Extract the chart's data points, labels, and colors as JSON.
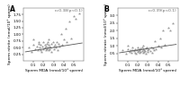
{
  "panel_A": {
    "label": "A",
    "annotation": "r=0.38(p<0.1)",
    "xlabel": "Sperm MDA (nmol/10⁶ sperm)",
    "ylabel": "Sperm nitrite (nmol/10⁶ sperm)",
    "xlim": [
      0,
      0.6
    ],
    "ylim": [
      0.0,
      2.0
    ],
    "xticks": [
      0.1,
      0.2,
      0.3,
      0.4,
      0.5
    ],
    "yticks": [
      0.25,
      0.5,
      0.75,
      1.0,
      1.25,
      1.5,
      1.75
    ],
    "trend_x": [
      0.02,
      0.58
    ],
    "trend_y": [
      0.35,
      0.68
    ],
    "scatter_x": [
      0.05,
      0.08,
      0.1,
      0.1,
      0.12,
      0.13,
      0.14,
      0.15,
      0.15,
      0.16,
      0.17,
      0.17,
      0.18,
      0.19,
      0.2,
      0.2,
      0.21,
      0.21,
      0.22,
      0.22,
      0.23,
      0.23,
      0.24,
      0.24,
      0.25,
      0.25,
      0.25,
      0.26,
      0.26,
      0.27,
      0.28,
      0.28,
      0.29,
      0.3,
      0.3,
      0.31,
      0.32,
      0.33,
      0.34,
      0.35,
      0.36,
      0.37,
      0.38,
      0.4,
      0.42,
      0.43,
      0.45,
      0.47,
      0.5,
      0.52,
      0.55
    ],
    "scatter_y": [
      0.5,
      0.35,
      0.6,
      0.8,
      0.45,
      0.55,
      0.4,
      0.65,
      0.7,
      0.5,
      0.4,
      0.6,
      0.35,
      0.55,
      0.7,
      0.45,
      0.5,
      0.6,
      0.4,
      0.55,
      0.65,
      0.45,
      0.7,
      0.5,
      0.4,
      0.6,
      0.8,
      0.45,
      0.55,
      0.5,
      0.65,
      0.35,
      0.7,
      0.55,
      0.45,
      0.6,
      0.5,
      0.7,
      0.4,
      0.65,
      0.55,
      1.0,
      0.6,
      0.8,
      1.2,
      0.7,
      1.5,
      0.85,
      1.7,
      1.6,
      1.8
    ]
  },
  "panel_B": {
    "label": "B",
    "annotation": "r=0.39(p<0.1)",
    "xlabel": "Sperm MDA (nmol/10⁶ sperm)",
    "ylabel": "Sperm nitrate (nmol/10⁶ sperm)",
    "xlim": [
      0,
      0.6
    ],
    "ylim": [
      0.0,
      3.5
    ],
    "xticks": [
      0.1,
      0.2,
      0.3,
      0.4,
      0.5
    ],
    "yticks": [
      0.5,
      1.0,
      1.5,
      2.0,
      2.5,
      3.0
    ],
    "trend_x": [
      0.02,
      0.58
    ],
    "trend_y": [
      0.55,
      1.1
    ],
    "scatter_x": [
      0.05,
      0.08,
      0.1,
      0.1,
      0.12,
      0.13,
      0.14,
      0.15,
      0.15,
      0.16,
      0.17,
      0.17,
      0.18,
      0.19,
      0.2,
      0.2,
      0.21,
      0.21,
      0.22,
      0.22,
      0.23,
      0.23,
      0.24,
      0.24,
      0.25,
      0.25,
      0.25,
      0.26,
      0.26,
      0.27,
      0.28,
      0.28,
      0.29,
      0.3,
      0.3,
      0.31,
      0.32,
      0.33,
      0.34,
      0.35,
      0.36,
      0.37,
      0.38,
      0.4,
      0.42,
      0.43,
      0.45,
      0.47,
      0.5,
      0.52,
      0.55
    ],
    "scatter_y": [
      0.7,
      0.5,
      0.8,
      1.0,
      0.6,
      0.7,
      0.55,
      0.75,
      0.9,
      0.65,
      0.55,
      0.8,
      0.5,
      0.7,
      0.9,
      0.6,
      0.65,
      0.8,
      0.55,
      0.7,
      0.85,
      0.6,
      0.9,
      0.65,
      0.55,
      0.8,
      1.0,
      0.6,
      0.75,
      0.65,
      0.85,
      0.5,
      0.9,
      0.7,
      0.6,
      0.8,
      0.65,
      0.9,
      0.55,
      0.85,
      0.7,
      1.3,
      0.8,
      1.0,
      1.5,
      0.9,
      2.0,
      1.1,
      2.2,
      2.0,
      2.5
    ]
  },
  "marker_color": "#999999",
  "line_color": "#555555",
  "marker_size": 2.5,
  "bg_color": "#ffffff",
  "axis_label_fontsize": 3.2,
  "tick_fontsize": 3.0,
  "annotation_fontsize": 3.2,
  "panel_label_fontsize": 5.5
}
